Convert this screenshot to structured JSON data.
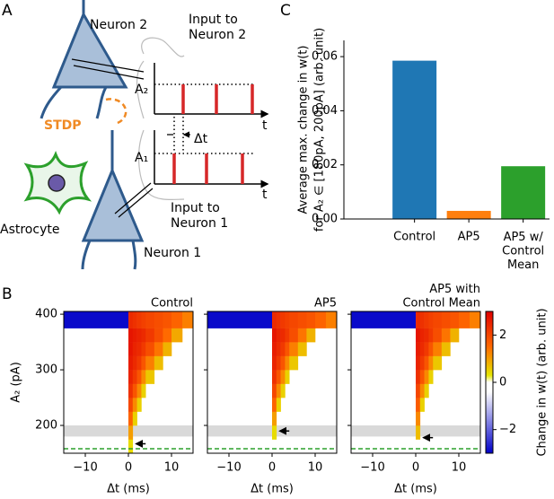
{
  "panel_labels": [
    "A",
    "B",
    "C"
  ],
  "diagram": {
    "neuron2": "Neuron 2",
    "input2": "Input to\nNeuron 2",
    "stdp": "STDP",
    "astrocyte": "Astrocyte",
    "input1": "Input to\nNeuron 1",
    "neuron1": "Neuron 1",
    "a2": "A₂",
    "a1": "A₁",
    "t": "t",
    "dt": "Δt"
  },
  "colorbar": {
    "label": "Change in w(t) (arb. unit)",
    "zlim": [
      -3,
      3
    ],
    "ticks": [
      {
        "value": -2,
        "label": "−2"
      },
      0,
      2
    ],
    "colorscale": [
      [
        -3,
        "#0000c8"
      ],
      [
        -0.4,
        "#ffffff"
      ],
      [
        0,
        "#ffffff"
      ],
      [
        0.3,
        "#e6e600"
      ],
      [
        1.5,
        "#ff6a00"
      ],
      [
        3,
        "#e00000"
      ]
    ]
  },
  "chart_data": [
    {
      "type": "bar",
      "ylabel": [
        "Average max. change in w(t)",
        "for A₂ ∈ [180pA, 200pA] (arb. unit)"
      ],
      "categories": [
        "Control",
        "AP5",
        "AP5 w/\nControl\nMean"
      ],
      "values": [
        0.0585,
        0.003,
        0.0195
      ],
      "colors": [
        "#1f77b4",
        "#ff7f0e",
        "#2ca02c"
      ],
      "ylim": [
        0,
        0.066
      ],
      "yticks": [
        {
          "value": 0,
          "label": "0.00"
        },
        0.02,
        0.04,
        0.06
      ]
    },
    {
      "type": "heatmap",
      "title": "Control",
      "xlabel": "Δt (ms)",
      "ylabel": "A₂ (pA)",
      "x_edges": [
        -15,
        0,
        1,
        2,
        3,
        4,
        6,
        8,
        10,
        12.5,
        15
      ],
      "y_edges": [
        150,
        175,
        200,
        225,
        250,
        275,
        300,
        325,
        350,
        375,
        405
      ],
      "z": [
        [
          null,
          0.4,
          null,
          null,
          null,
          null,
          null,
          null,
          null,
          null
        ],
        [
          null,
          1.0,
          null,
          null,
          null,
          null,
          null,
          null,
          null,
          null
        ],
        [
          null,
          1.6,
          0.5,
          null,
          null,
          null,
          null,
          null,
          null,
          null
        ],
        [
          null,
          2.0,
          1.2,
          0.5,
          null,
          null,
          null,
          null,
          null,
          null
        ],
        [
          null,
          2.3,
          1.8,
          1.2,
          0.5,
          null,
          null,
          null,
          null,
          null
        ],
        [
          null,
          2.5,
          2.2,
          1.8,
          1.2,
          0.6,
          null,
          null,
          null,
          null
        ],
        [
          null,
          2.6,
          2.4,
          2.2,
          1.8,
          1.3,
          0.7,
          null,
          null,
          null
        ],
        [
          null,
          2.7,
          2.5,
          2.4,
          2.2,
          1.9,
          1.4,
          0.8,
          null,
          null
        ],
        [
          null,
          2.7,
          2.6,
          2.5,
          2.4,
          2.2,
          1.9,
          1.5,
          0.9,
          null
        ],
        [
          -2.9,
          2.4,
          2.3,
          2.2,
          2.1,
          2.0,
          1.9,
          1.8,
          1.6,
          1.3
        ]
      ],
      "xlim": [
        -15,
        15
      ],
      "ylim": [
        150,
        405
      ],
      "xticks": [
        {
          "value": -10,
          "label": "−10"
        },
        0,
        10
      ],
      "yticks": [
        200,
        300,
        400
      ],
      "band": [
        180,
        200
      ],
      "band_color": "#d9d9d9",
      "hline": 158,
      "hline_color": "#2ca02c",
      "arrow": {
        "x": [
          4,
          1.8
        ],
        "y": 167
      }
    },
    {
      "type": "heatmap",
      "title": "AP5",
      "xlabel": "Δt (ms)",
      "x_edges": [
        -15,
        0,
        1,
        2,
        3,
        4,
        6,
        8,
        10,
        12.5,
        15
      ],
      "y_edges": [
        150,
        175,
        200,
        225,
        250,
        275,
        300,
        325,
        350,
        375,
        405
      ],
      "z": [
        [
          null,
          null,
          null,
          null,
          null,
          null,
          null,
          null,
          null,
          null
        ],
        [
          null,
          0.4,
          null,
          null,
          null,
          null,
          null,
          null,
          null,
          null
        ],
        [
          null,
          1.0,
          null,
          null,
          null,
          null,
          null,
          null,
          null,
          null
        ],
        [
          null,
          1.6,
          0.5,
          null,
          null,
          null,
          null,
          null,
          null,
          null
        ],
        [
          null,
          2.0,
          1.2,
          0.5,
          null,
          null,
          null,
          null,
          null,
          null
        ],
        [
          null,
          2.3,
          1.8,
          1.2,
          0.5,
          null,
          null,
          null,
          null,
          null
        ],
        [
          null,
          2.5,
          2.2,
          1.8,
          1.2,
          0.6,
          null,
          null,
          null,
          null
        ],
        [
          null,
          2.6,
          2.4,
          2.2,
          1.8,
          1.3,
          0.7,
          null,
          null,
          null
        ],
        [
          null,
          2.7,
          2.5,
          2.4,
          2.2,
          1.9,
          1.4,
          0.8,
          null,
          null
        ],
        [
          -2.9,
          2.4,
          2.3,
          2.2,
          2.1,
          2.0,
          1.9,
          1.8,
          1.6,
          1.3
        ]
      ],
      "xlim": [
        -15,
        15
      ],
      "ylim": [
        150,
        405
      ],
      "xticks": [
        {
          "value": -10,
          "label": "−10"
        },
        0,
        10
      ],
      "yticks": [
        200,
        300,
        400
      ],
      "band": [
        180,
        200
      ],
      "band_color": "#d9d9d9",
      "hline": 158,
      "hline_color": "#2ca02c",
      "arrow": {
        "x": [
          4,
          1.8
        ],
        "y": 190
      }
    },
    {
      "type": "heatmap",
      "title": "AP5 with\nControl Mean",
      "xlabel": "Δt (ms)",
      "x_edges": [
        -15,
        0,
        1,
        2,
        3,
        4,
        6,
        8,
        10,
        12.5,
        15
      ],
      "y_edges": [
        150,
        175,
        200,
        225,
        250,
        275,
        300,
        325,
        350,
        375,
        405
      ],
      "z": [
        [
          null,
          null,
          null,
          null,
          null,
          null,
          null,
          null,
          null,
          null
        ],
        [
          null,
          0.7,
          null,
          null,
          null,
          null,
          null,
          null,
          null,
          null
        ],
        [
          null,
          1.2,
          null,
          null,
          null,
          null,
          null,
          null,
          null,
          null
        ],
        [
          null,
          1.7,
          0.5,
          null,
          null,
          null,
          null,
          null,
          null,
          null
        ],
        [
          null,
          2.0,
          1.2,
          0.5,
          null,
          null,
          null,
          null,
          null,
          null
        ],
        [
          null,
          2.3,
          1.8,
          1.2,
          0.5,
          null,
          null,
          null,
          null,
          null
        ],
        [
          null,
          2.5,
          2.2,
          1.8,
          1.2,
          0.6,
          null,
          null,
          null,
          null
        ],
        [
          null,
          2.6,
          2.4,
          2.2,
          1.8,
          1.3,
          0.7,
          null,
          null,
          null
        ],
        [
          null,
          2.7,
          2.5,
          2.4,
          2.2,
          1.9,
          1.4,
          0.8,
          null,
          null
        ],
        [
          -2.9,
          2.4,
          2.3,
          2.2,
          2.1,
          2.0,
          1.9,
          1.8,
          1.6,
          1.3
        ]
      ],
      "xlim": [
        -15,
        15
      ],
      "ylim": [
        150,
        405
      ],
      "xticks": [
        {
          "value": -10,
          "label": "−10"
        },
        0,
        10
      ],
      "yticks": [
        200,
        300,
        400
      ],
      "band": [
        180,
        200
      ],
      "band_color": "#d9d9d9",
      "hline": 158,
      "hline_color": "#2ca02c",
      "arrow": {
        "x": [
          4,
          1.8
        ],
        "y": 178
      }
    }
  ]
}
